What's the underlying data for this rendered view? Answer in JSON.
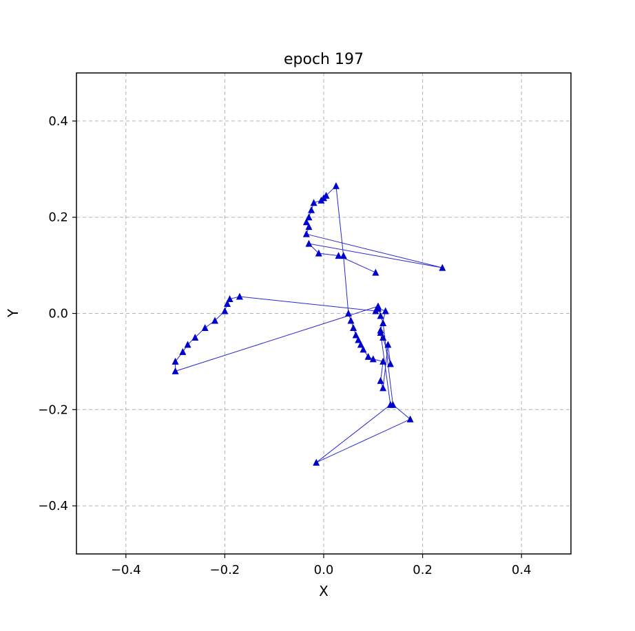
{
  "chart_data": {
    "type": "line",
    "title": "epoch  197",
    "xlabel": "X",
    "ylabel": "Y",
    "xlim": [
      -0.5,
      0.5
    ],
    "ylim": [
      -0.5,
      0.5
    ],
    "xticks": [
      -0.4,
      -0.2,
      0.0,
      0.2,
      0.4
    ],
    "yticks": [
      -0.4,
      -0.2,
      0.0,
      0.2,
      0.4
    ],
    "xtick_labels": [
      "−0.4",
      "−0.2",
      "0.0",
      "0.2",
      "0.4"
    ],
    "ytick_labels": [
      "−0.4",
      "−0.2",
      "0.0",
      "0.2",
      "0.4"
    ],
    "grid": true,
    "marker": "triangle",
    "color": "#0000cc",
    "series": [
      {
        "x": [
          0.105,
          0.03,
          -0.01,
          -0.03,
          0.24,
          -0.035,
          -0.03,
          -0.035,
          -0.03,
          -0.025,
          -0.02,
          -0.005,
          0.0,
          0.005,
          0.025,
          0.04,
          0.05,
          0.055,
          0.06,
          0.065,
          0.07,
          0.075,
          0.08,
          0.09,
          0.1,
          0.12,
          0.115,
          0.12,
          0.13,
          0.135,
          0.12,
          0.115,
          0.125,
          0.11,
          0.105,
          -0.17,
          -0.19,
          -0.195,
          -0.2,
          -0.22,
          -0.24,
          -0.26,
          -0.275,
          -0.285,
          -0.3,
          -0.3,
          0.11,
          0.115,
          0.12,
          0.14,
          0.175,
          -0.015,
          0.135,
          0.115
        ],
        "y": [
          0.085,
          0.12,
          0.125,
          0.145,
          0.095,
          0.165,
          0.18,
          0.19,
          0.2,
          0.215,
          0.23,
          0.235,
          0.24,
          0.245,
          0.265,
          0.12,
          0.0,
          -0.015,
          -0.03,
          -0.045,
          -0.055,
          -0.065,
          -0.075,
          -0.09,
          -0.095,
          -0.1,
          -0.14,
          -0.155,
          -0.065,
          -0.105,
          -0.05,
          -0.035,
          0.005,
          0.01,
          0.005,
          0.035,
          0.03,
          0.02,
          0.005,
          -0.015,
          -0.03,
          -0.05,
          -0.065,
          -0.08,
          -0.1,
          -0.12,
          0.015,
          -0.005,
          -0.02,
          -0.19,
          -0.22,
          -0.31,
          -0.19,
          -0.04
        ]
      }
    ]
  }
}
